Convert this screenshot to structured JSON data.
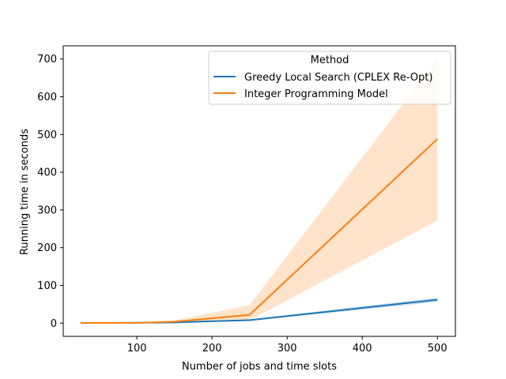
{
  "chart_data": {
    "type": "line",
    "title": "",
    "xlabel": "Number of jobs and time slots",
    "ylabel": "Running time in seconds",
    "xlim": [
      2,
      524
    ],
    "ylim": [
      -35,
      735
    ],
    "xticks": [
      100,
      200,
      300,
      400,
      500
    ],
    "yticks": [
      0,
      100,
      200,
      300,
      400,
      500,
      600,
      700
    ],
    "grid": false,
    "legend": {
      "title": "Method",
      "placement": "top-right"
    },
    "series": [
      {
        "name": "Greedy Local Search (CPLEX Re-Opt)",
        "color": "#1f77b4",
        "x": [
          25,
          100,
          150,
          250,
          500
        ],
        "y": [
          0.5,
          1,
          2,
          8,
          62
        ],
        "lower": [
          0.3,
          0.8,
          1.5,
          6,
          56
        ],
        "upper": [
          0.7,
          1.2,
          2.5,
          10,
          68
        ]
      },
      {
        "name": "Integer Programming Model",
        "color": "#ff7f0e",
        "x": [
          25,
          100,
          150,
          250,
          500
        ],
        "y": [
          0.3,
          0.8,
          4,
          22,
          488
        ],
        "lower": [
          0.1,
          0.5,
          2,
          8,
          272
        ],
        "upper": [
          0.6,
          1.5,
          7,
          48,
          700
        ]
      }
    ]
  }
}
